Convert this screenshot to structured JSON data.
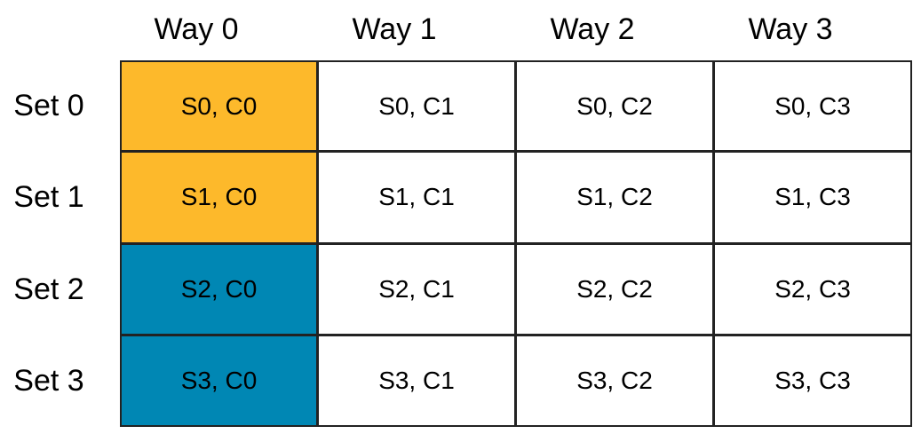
{
  "columns": [
    "Way 0",
    "Way 1",
    "Way 2",
    "Way 3"
  ],
  "rows": [
    {
      "label": "Set 0",
      "cells": [
        "S0, C0",
        "S0, C1",
        "S0, C2",
        "S0, C3"
      ]
    },
    {
      "label": "Set 1",
      "cells": [
        "S1, C0",
        "S1, C1",
        "S1, C2",
        "S1, C3"
      ]
    },
    {
      "label": "Set 2",
      "cells": [
        "S2, C0",
        "S2, C1",
        "S2, C2",
        "S2, C3"
      ]
    },
    {
      "label": "Set 3",
      "cells": [
        "S3, C0",
        "S3, C1",
        "S3, C2",
        "S3, C3"
      ]
    }
  ]
}
